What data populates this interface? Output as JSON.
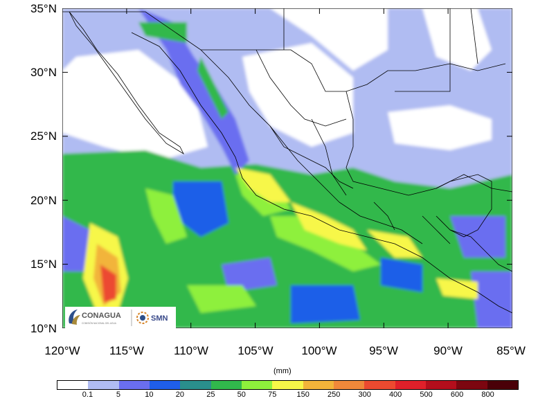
{
  "map": {
    "lat_labels": [
      "35°N",
      "30°N",
      "25°N",
      "20°N",
      "15°N",
      "10°N"
    ],
    "lon_labels": [
      "120°W",
      "115°W",
      "110°W",
      "105°W",
      "100°W",
      "95°W",
      "90°W",
      "85°W"
    ],
    "extent": {
      "lon": [
        -120,
        -85
      ],
      "lat": [
        10,
        35
      ]
    }
  },
  "colorbar": {
    "unit": "(mm)",
    "ticks": [
      "0.1",
      "5",
      "10",
      "20",
      "25",
      "50",
      "75",
      "150",
      "250",
      "300",
      "400",
      "500",
      "600",
      "800"
    ],
    "colors": [
      "#ffffff",
      "#b0bcf2",
      "#6a6ef0",
      "#1f5ee8",
      "#2a8f8c",
      "#31b84c",
      "#8ef03c",
      "#f7f748",
      "#f2b43a",
      "#f0883a",
      "#ec4a30",
      "#e0202a",
      "#b40e1c",
      "#7c0610",
      "#4a0008"
    ]
  },
  "logo": {
    "agency": "CONAGUA",
    "agency_sub": "COMISIÓN NACIONAL DEL AGUA",
    "service": "SMN"
  }
}
